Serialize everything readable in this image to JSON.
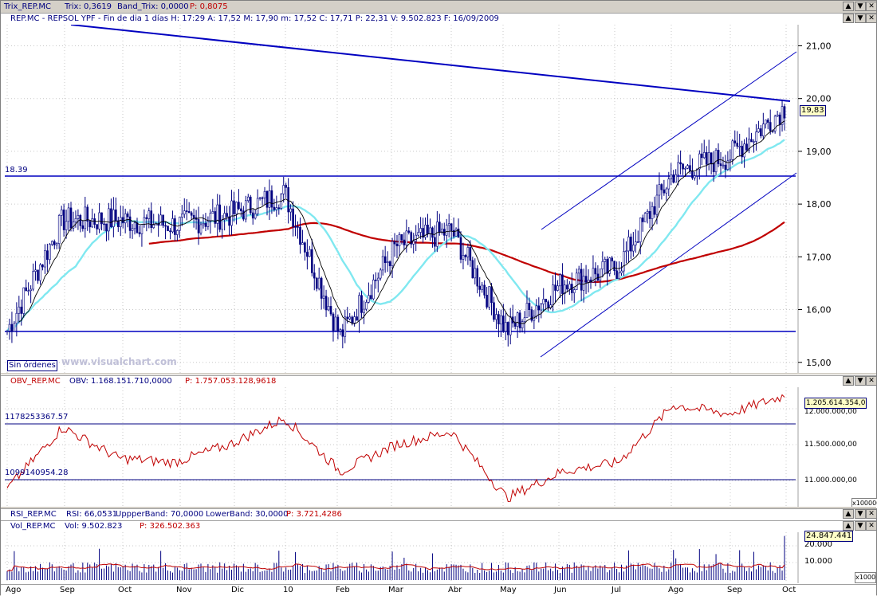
{
  "window": {
    "title_parts": [
      "Trix_REP.MC",
      "Trix: 0,3619",
      "Band_Trix: 0,0000",
      "P: 0,8075"
    ],
    "btn_up": "▲",
    "btn_down": "▼",
    "btn_close": "✕"
  },
  "price_panel": {
    "header": "REP.MC - REPSOL YPF - Fin de dia 1 días H: 17:29  A: 17,52  M: 17,90  m: 17,52  C: 17,71  P: 22,31  V: 9.502.823  F: 16/09/2009",
    "level_label": "18.39",
    "last_value": "19,83",
    "watermark": "www.visualchart.com",
    "orders_button": "Sin órdenes",
    "y_ticks": [
      "21,00",
      "20,00",
      "19,00",
      "18,00",
      "17,00",
      "16,00",
      "15,00"
    ]
  },
  "obv_panel": {
    "header_parts": [
      "OBV_REP.MC",
      "OBV: 1.168.151.710,0000",
      "P: 1.757.053.128,9618"
    ],
    "level_high": "1178253367.57",
    "level_low": "1099140954.28",
    "last_value": "1.205.614.354,0",
    "y_ticks": [
      "12.000.000,00",
      "11.500.000,00",
      "11.000.000,00"
    ],
    "scale": "x100000"
  },
  "rsi_header": {
    "parts": [
      "RSI_REP.MC",
      "RSI: 66,0531",
      "UppperBand: 70,0000",
      "LowerBand: 30,0000",
      "P: 3.721,4286"
    ]
  },
  "vol_panel": {
    "header_parts": [
      "Vol_REP.MC",
      "Vol: 9.502.823",
      "P: 326.502.363"
    ],
    "last_value": "24.847.441",
    "y_ticks": [
      "20.000",
      "10.000"
    ],
    "scale": "x1000"
  },
  "x_axis": {
    "labels": [
      "Ago",
      "Sep",
      "Oct",
      "Nov",
      "Dic",
      "10",
      "Feb",
      "Mar",
      "Abr",
      "May",
      "Jun",
      "Jul",
      "Ago",
      "Sep",
      "Oct"
    ]
  },
  "chart_data": {
    "type": "line",
    "title": "REP.MC - REPSOL YPF",
    "x": [
      "Ago",
      "Sep",
      "Oct",
      "Nov",
      "Dic",
      "10",
      "Feb",
      "Mar",
      "Abr",
      "May",
      "Jun",
      "Jul",
      "Ago",
      "Sep",
      "Oct"
    ],
    "series": [
      {
        "name": "REP.MC",
        "values": [
          15.6,
          17.7,
          17.7,
          17.6,
          17.8,
          18.2,
          15.5,
          17.2,
          17.5,
          15.6,
          16.5,
          16.8,
          18.6,
          18.9,
          19.83
        ]
      },
      {
        "name": "OBV_REP.MC",
        "values": [
          1100000000,
          1170000000,
          1135000000,
          1130000000,
          1150000000,
          1180000000,
          1120000000,
          1150000000,
          1165000000,
          1090000000,
          1120000000,
          1130000000,
          1195000000,
          1185000000,
          1205614354
        ]
      }
    ],
    "ylim": [
      14.8,
      21.4
    ],
    "levels": [
      18.39,
      15.45
    ],
    "colors": {
      "price": "#000080",
      "line": "#0000c0",
      "ma_fast": "#000000",
      "ma_mid": "#80e8f0",
      "ma_slow": "#c00000",
      "obv": "#c00000",
      "volume": "#000080"
    }
  }
}
